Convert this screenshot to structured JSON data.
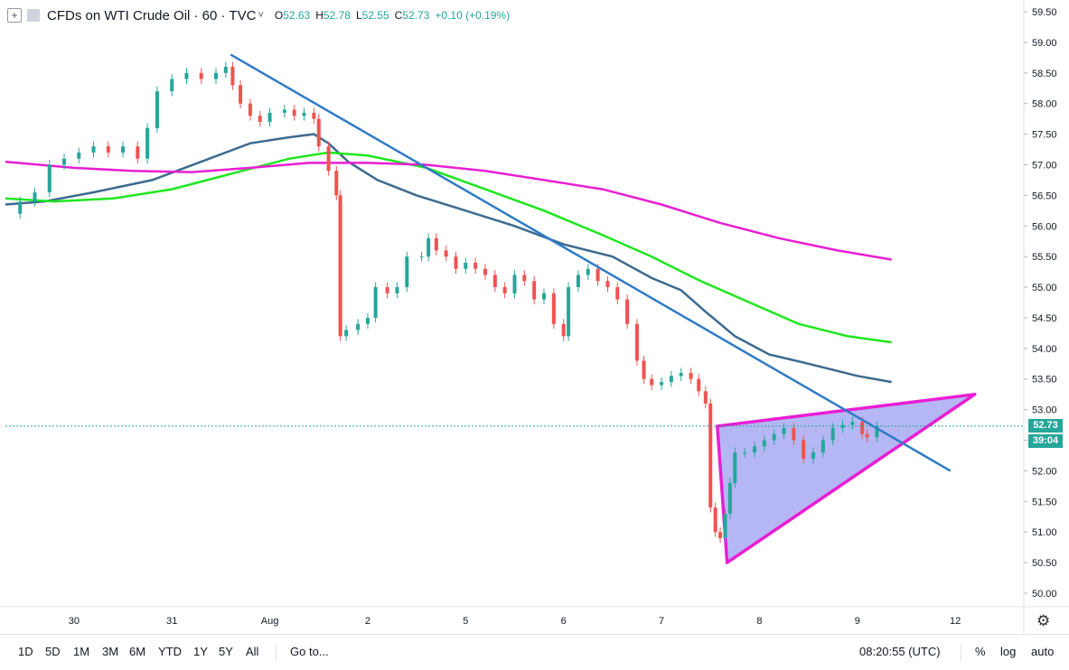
{
  "legend": {
    "plus_icon": "+",
    "title": "CFDs on WTI Crude Oil · 60 · TVC",
    "chevron": "˅",
    "o_label": "O",
    "o_value": "52.63",
    "h_label": "H",
    "h_value": "52.78",
    "l_label": "L",
    "l_value": "52.55",
    "c_label": "C",
    "c_value": "52.73",
    "change": "+0.10 (+0.19%)"
  },
  "price_axis": {
    "last_price": "52.73",
    "countdown": "39:04"
  },
  "toolbar": {
    "ranges": [
      "1D",
      "5D",
      "1M",
      "3M",
      "6M",
      "YTD",
      "1Y",
      "5Y",
      "All"
    ],
    "goto": "Go to...",
    "clock": "08:20:55 (UTC)",
    "percent": "%",
    "log": "log",
    "auto": "auto"
  },
  "colors": {
    "up": "#26a69a",
    "down": "#ef5350",
    "ma_slow": "#e91ed3",
    "ma_mid": "#1ee61e",
    "ma_fast": "#3d6a8f",
    "trendline": "#2f7bc4",
    "triangle_fill": "#9b9ff0",
    "triangle_edge": "#e91ed3"
  },
  "chart_data": {
    "type": "line",
    "x_ticks": [
      {
        "x": 1.0,
        "label": "30"
      },
      {
        "x": 2.0,
        "label": "31"
      },
      {
        "x": 3.0,
        "label": "Aug"
      },
      {
        "x": 4.0,
        "label": "2"
      },
      {
        "x": 5.0,
        "label": "5"
      },
      {
        "x": 6.0,
        "label": "6"
      },
      {
        "x": 7.0,
        "label": "7"
      },
      {
        "x": 8.0,
        "label": "8"
      },
      {
        "x": 9.0,
        "label": "9"
      },
      {
        "x": 10.0,
        "label": "12"
      }
    ],
    "xlim": [
      0.3,
      10.7
    ],
    "y_ticks": [
      "50.00",
      "50.50",
      "51.00",
      "51.50",
      "52.00",
      "52.50",
      "53.00",
      "53.50",
      "54.00",
      "54.50",
      "55.00",
      "55.50",
      "56.00",
      "56.50",
      "57.00",
      "57.50",
      "58.00",
      "58.50",
      "59.00",
      "59.50"
    ],
    "ylim": [
      49.7,
      59.7
    ],
    "last_price": 52.73,
    "price_path": [
      [
        0.3,
        56.2
      ],
      [
        0.45,
        56.4
      ],
      [
        0.6,
        56.55
      ],
      [
        0.75,
        57.0
      ],
      [
        0.9,
        57.1
      ],
      [
        1.05,
        57.2
      ],
      [
        1.2,
        57.3
      ],
      [
        1.35,
        57.2
      ],
      [
        1.5,
        57.3
      ],
      [
        1.65,
        57.1
      ],
      [
        1.75,
        57.6
      ],
      [
        1.85,
        58.2
      ],
      [
        2.0,
        58.4
      ],
      [
        2.15,
        58.5
      ],
      [
        2.3,
        58.4
      ],
      [
        2.45,
        58.5
      ],
      [
        2.55,
        58.6
      ],
      [
        2.62,
        58.3
      ],
      [
        2.7,
        58.0
      ],
      [
        2.8,
        57.8
      ],
      [
        2.9,
        57.7
      ],
      [
        3.0,
        57.85
      ],
      [
        3.15,
        57.9
      ],
      [
        3.25,
        57.8
      ],
      [
        3.35,
        57.85
      ],
      [
        3.45,
        57.75
      ],
      [
        3.5,
        57.3
      ],
      [
        3.6,
        56.9
      ],
      [
        3.68,
        56.5
      ],
      [
        3.72,
        54.2
      ],
      [
        3.78,
        54.3
      ],
      [
        3.9,
        54.4
      ],
      [
        4.0,
        54.5
      ],
      [
        4.08,
        55.0
      ],
      [
        4.2,
        54.9
      ],
      [
        4.3,
        55.0
      ],
      [
        4.4,
        55.5
      ],
      [
        4.55,
        55.5
      ],
      [
        4.62,
        55.8
      ],
      [
        4.7,
        55.6
      ],
      [
        4.8,
        55.5
      ],
      [
        4.9,
        55.3
      ],
      [
        5.0,
        55.4
      ],
      [
        5.1,
        55.3
      ],
      [
        5.2,
        55.2
      ],
      [
        5.3,
        55.0
      ],
      [
        5.4,
        54.9
      ],
      [
        5.5,
        55.2
      ],
      [
        5.6,
        55.1
      ],
      [
        5.7,
        54.8
      ],
      [
        5.8,
        54.9
      ],
      [
        5.9,
        54.4
      ],
      [
        6.0,
        54.2
      ],
      [
        6.05,
        55.0
      ],
      [
        6.15,
        55.2
      ],
      [
        6.25,
        55.3
      ],
      [
        6.35,
        55.1
      ],
      [
        6.45,
        55.0
      ],
      [
        6.55,
        54.8
      ],
      [
        6.65,
        54.4
      ],
      [
        6.75,
        53.8
      ],
      [
        6.82,
        53.5
      ],
      [
        6.9,
        53.4
      ],
      [
        7.0,
        53.45
      ],
      [
        7.1,
        53.55
      ],
      [
        7.2,
        53.6
      ],
      [
        7.3,
        53.5
      ],
      [
        7.38,
        53.3
      ],
      [
        7.45,
        53.1
      ],
      [
        7.5,
        51.4
      ],
      [
        7.55,
        51.0
      ],
      [
        7.6,
        50.9
      ],
      [
        7.65,
        51.3
      ],
      [
        7.7,
        51.8
      ],
      [
        7.75,
        52.3
      ],
      [
        7.85,
        52.3
      ],
      [
        7.95,
        52.4
      ],
      [
        8.05,
        52.5
      ],
      [
        8.15,
        52.6
      ],
      [
        8.25,
        52.7
      ],
      [
        8.35,
        52.5
      ],
      [
        8.45,
        52.2
      ],
      [
        8.55,
        52.3
      ],
      [
        8.65,
        52.5
      ],
      [
        8.75,
        52.7
      ],
      [
        8.85,
        52.75
      ],
      [
        8.95,
        52.8
      ],
      [
        9.05,
        52.6
      ],
      [
        9.1,
        52.55
      ],
      [
        9.2,
        52.73
      ]
    ],
    "series": [
      {
        "role": "ma_fast",
        "points": [
          [
            0.3,
            56.35
          ],
          [
            0.7,
            56.4
          ],
          [
            1.2,
            56.55
          ],
          [
            1.8,
            56.75
          ],
          [
            2.3,
            57.05
          ],
          [
            2.8,
            57.35
          ],
          [
            3.2,
            57.45
          ],
          [
            3.45,
            57.5
          ],
          [
            3.6,
            57.35
          ],
          [
            3.8,
            57.05
          ],
          [
            4.1,
            56.75
          ],
          [
            4.5,
            56.5
          ],
          [
            5.0,
            56.25
          ],
          [
            5.5,
            56.0
          ],
          [
            6.0,
            55.7
          ],
          [
            6.5,
            55.5
          ],
          [
            6.9,
            55.15
          ],
          [
            7.2,
            54.95
          ],
          [
            7.45,
            54.6
          ],
          [
            7.75,
            54.2
          ],
          [
            8.1,
            53.9
          ],
          [
            8.5,
            53.75
          ],
          [
            9.0,
            53.55
          ],
          [
            9.35,
            53.45
          ]
        ]
      },
      {
        "role": "ma_mid",
        "points": [
          [
            0.3,
            56.45
          ],
          [
            0.8,
            56.4
          ],
          [
            1.4,
            56.45
          ],
          [
            2.0,
            56.6
          ],
          [
            2.6,
            56.85
          ],
          [
            3.2,
            57.1
          ],
          [
            3.6,
            57.2
          ],
          [
            4.0,
            57.15
          ],
          [
            4.6,
            56.95
          ],
          [
            5.2,
            56.6
          ],
          [
            5.8,
            56.25
          ],
          [
            6.4,
            55.85
          ],
          [
            6.9,
            55.5
          ],
          [
            7.4,
            55.1
          ],
          [
            7.9,
            54.75
          ],
          [
            8.4,
            54.4
          ],
          [
            8.9,
            54.2
          ],
          [
            9.35,
            54.1
          ]
        ]
      },
      {
        "role": "ma_slow",
        "points": [
          [
            0.3,
            57.05
          ],
          [
            1.0,
            56.95
          ],
          [
            1.6,
            56.9
          ],
          [
            2.2,
            56.88
          ],
          [
            2.8,
            56.95
          ],
          [
            3.4,
            57.03
          ],
          [
            4.0,
            57.03
          ],
          [
            4.6,
            57.0
          ],
          [
            5.2,
            56.9
          ],
          [
            5.8,
            56.75
          ],
          [
            6.4,
            56.6
          ],
          [
            7.0,
            56.35
          ],
          [
            7.6,
            56.05
          ],
          [
            8.2,
            55.8
          ],
          [
            8.8,
            55.6
          ],
          [
            9.35,
            55.45
          ]
        ]
      }
    ],
    "trendlines": [
      {
        "role": "trendline",
        "from": [
          2.6,
          58.8
        ],
        "to": [
          9.95,
          52.0
        ]
      }
    ],
    "triangle": {
      "points": [
        [
          7.57,
          52.73
        ],
        [
          10.2,
          53.25
        ],
        [
          7.67,
          50.5
        ]
      ]
    }
  }
}
